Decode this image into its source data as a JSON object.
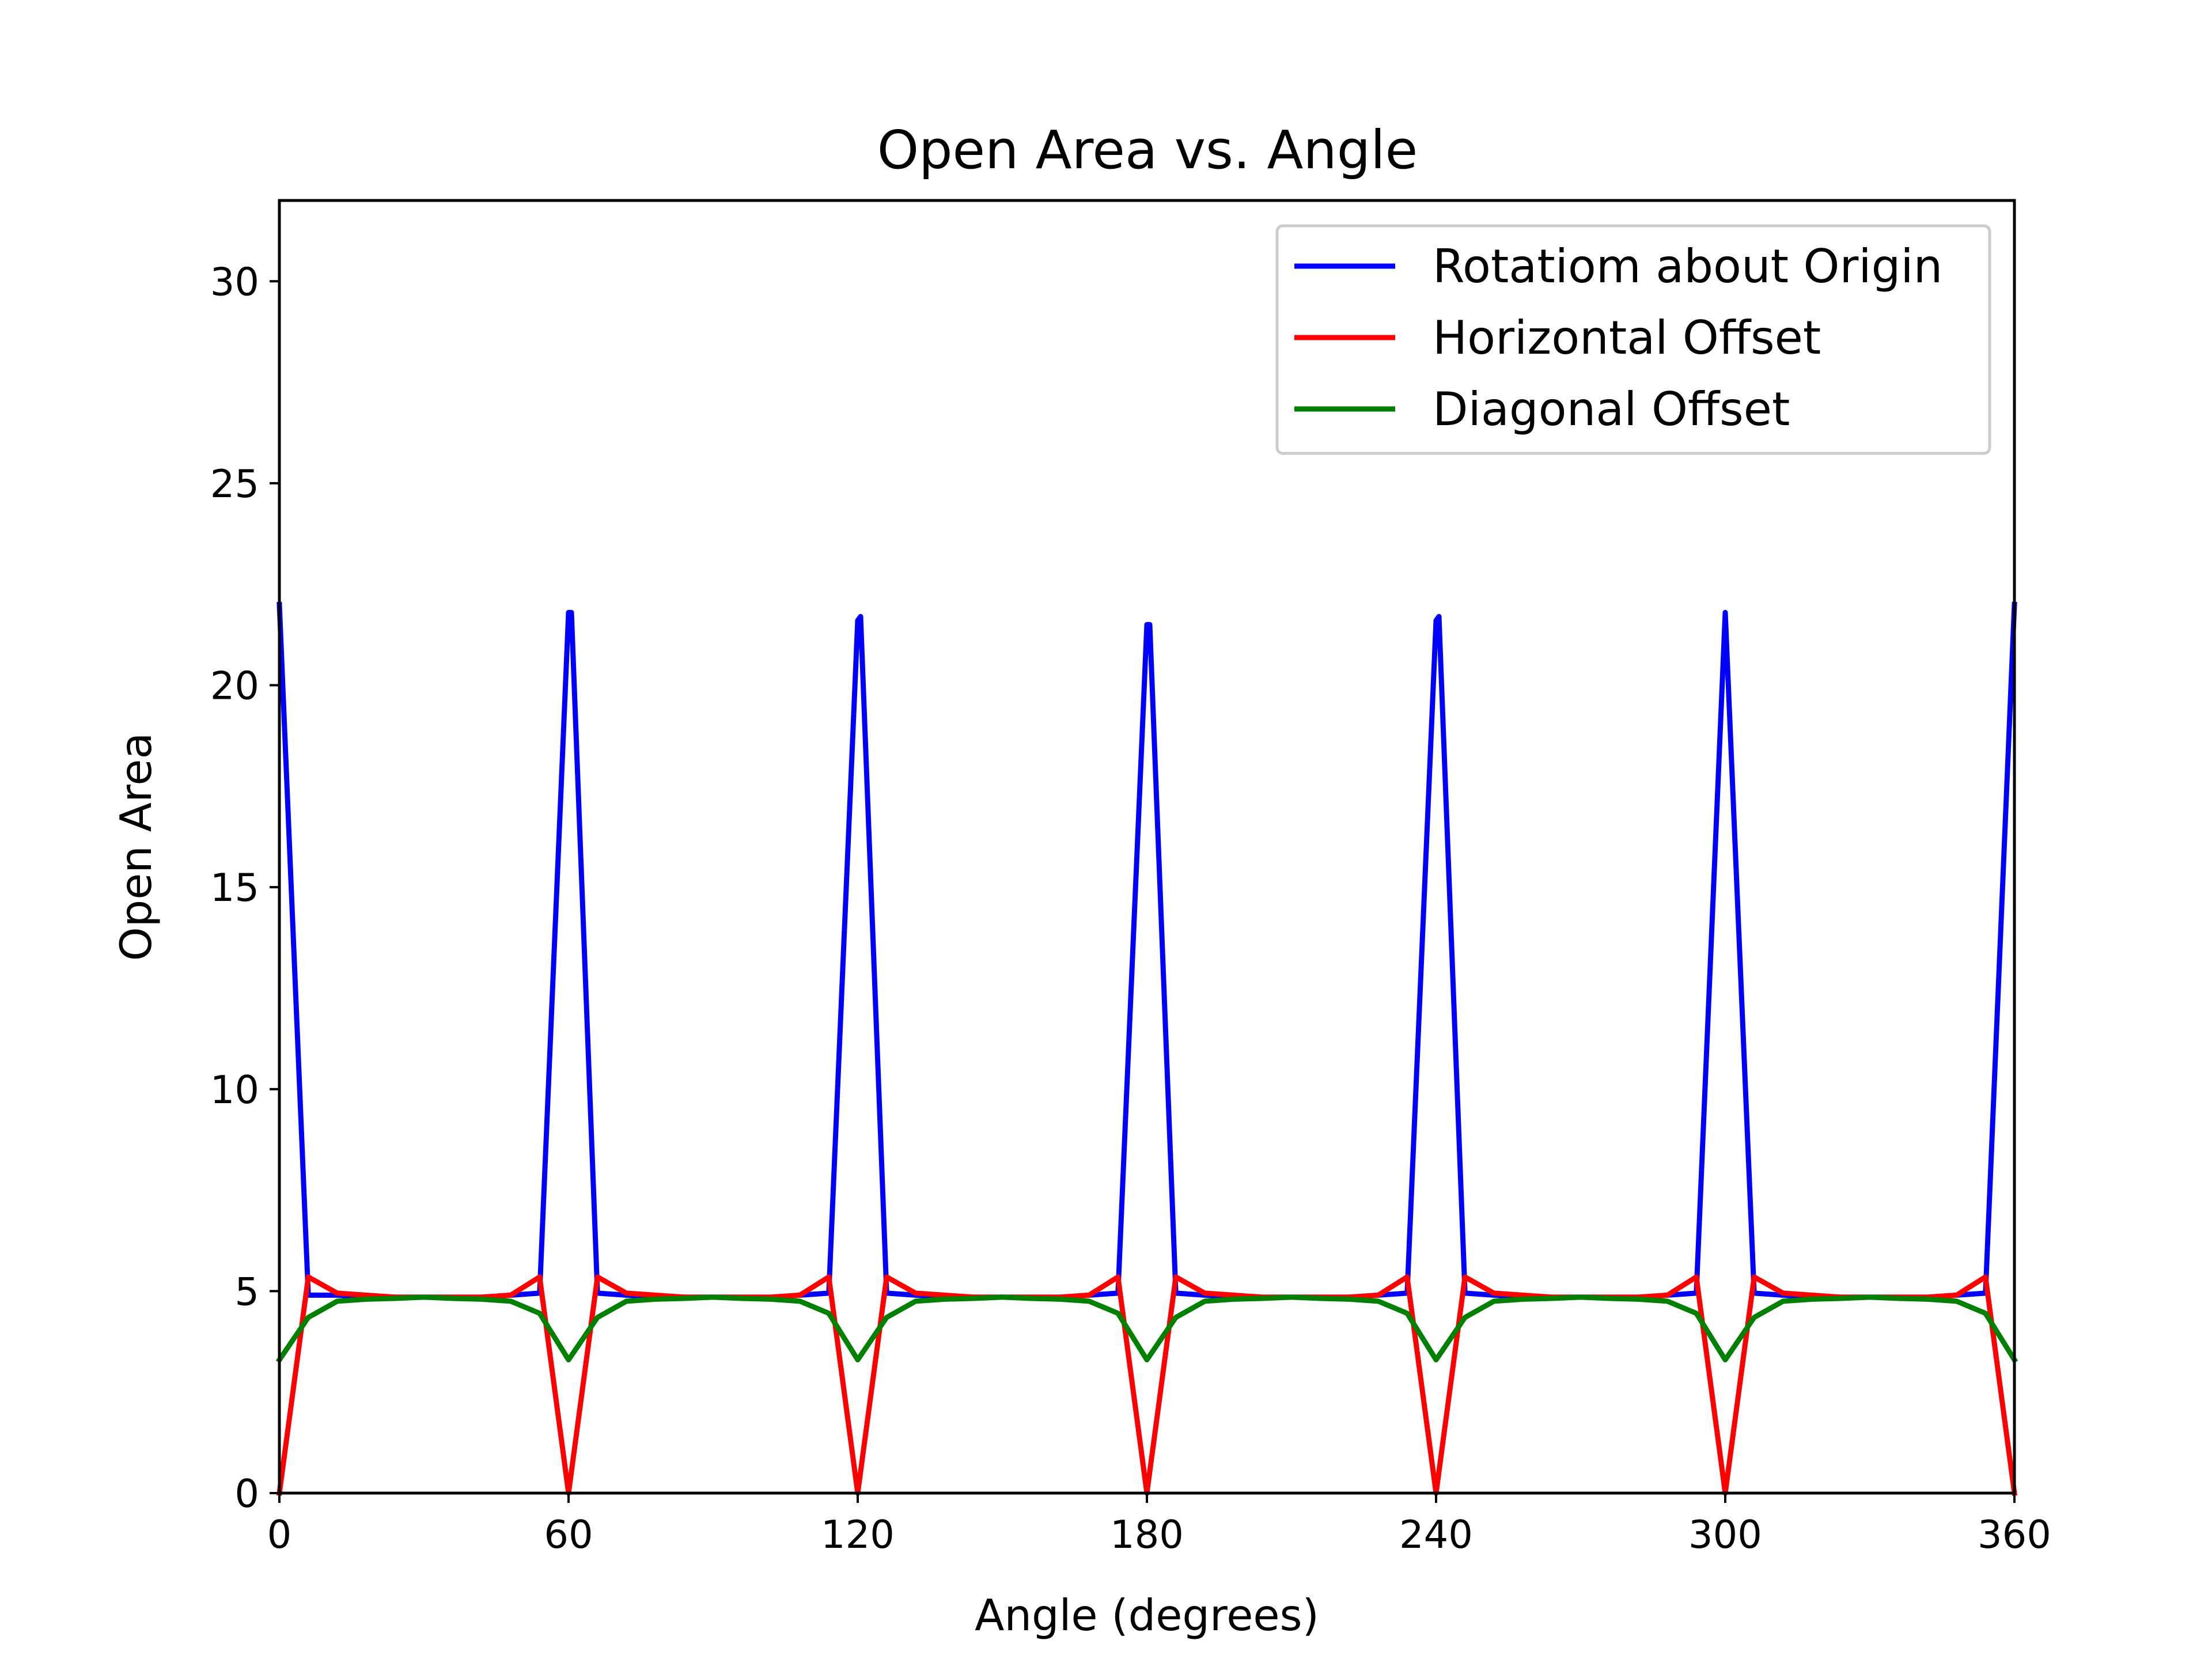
{
  "chart_data": {
    "type": "line",
    "title": "Open Area vs. Angle",
    "xlabel": "Angle (degrees)",
    "ylabel": "Open Area",
    "xlim": [
      0,
      360
    ],
    "ylim": [
      0,
      32
    ],
    "x_ticks": [
      "0",
      "60",
      "120",
      "180",
      "240",
      "300",
      "360"
    ],
    "y_ticks": [
      "0",
      "5",
      "10",
      "15",
      "20",
      "25",
      "30"
    ],
    "grid": false,
    "legend_position": "top-right",
    "series": [
      {
        "name": "Rotatiom about Origin",
        "color": "#0000ff",
        "x": [
          0,
          6,
          12,
          18,
          24,
          30,
          36,
          42,
          48,
          54,
          60,
          60.6,
          66,
          72,
          78,
          84,
          90,
          96,
          102,
          108,
          114,
          120,
          120.6,
          126,
          132,
          138,
          144,
          150,
          156,
          162,
          168,
          174,
          180,
          180.6,
          186,
          192,
          198,
          204,
          210,
          216,
          222,
          228,
          234,
          240,
          240.6,
          246,
          252,
          258,
          264,
          270,
          276,
          282,
          288,
          294,
          300,
          306,
          312,
          318,
          324,
          330,
          336,
          342,
          348,
          354,
          360
        ],
        "y": [
          22.0,
          4.9,
          4.9,
          4.85,
          4.85,
          4.85,
          4.85,
          4.85,
          4.9,
          4.95,
          21.8,
          21.8,
          4.95,
          4.9,
          4.85,
          4.85,
          4.85,
          4.85,
          4.85,
          4.9,
          4.95,
          21.6,
          21.7,
          4.95,
          4.9,
          4.85,
          4.85,
          4.85,
          4.85,
          4.85,
          4.9,
          4.95,
          21.5,
          21.5,
          4.95,
          4.9,
          4.85,
          4.85,
          4.85,
          4.85,
          4.85,
          4.9,
          4.95,
          21.6,
          21.7,
          4.95,
          4.9,
          4.85,
          4.85,
          4.85,
          4.85,
          4.85,
          4.9,
          4.95,
          21.8,
          4.95,
          4.9,
          4.85,
          4.85,
          4.85,
          4.85,
          4.85,
          4.9,
          4.95,
          22.0
        ]
      },
      {
        "name": "Horizontal Offset",
        "color": "#ff0000",
        "x": [
          0,
          6,
          12,
          18,
          24,
          30,
          36,
          42,
          48,
          54,
          60,
          66,
          72,
          78,
          84,
          90,
          96,
          102,
          108,
          114,
          120,
          126,
          132,
          138,
          144,
          150,
          156,
          162,
          168,
          174,
          180,
          186,
          192,
          198,
          204,
          210,
          216,
          222,
          228,
          234,
          240,
          246,
          252,
          258,
          264,
          270,
          276,
          282,
          288,
          294,
          300,
          306,
          312,
          318,
          324,
          330,
          336,
          342,
          348,
          354,
          360
        ],
        "y": [
          0,
          5.35,
          4.95,
          4.9,
          4.85,
          4.85,
          4.85,
          4.85,
          4.9,
          5.35,
          0,
          5.35,
          4.95,
          4.9,
          4.85,
          4.85,
          4.85,
          4.85,
          4.9,
          5.35,
          0,
          5.35,
          4.95,
          4.9,
          4.85,
          4.85,
          4.85,
          4.85,
          4.9,
          5.35,
          0,
          5.35,
          4.95,
          4.9,
          4.85,
          4.85,
          4.85,
          4.85,
          4.9,
          5.35,
          0,
          5.35,
          4.95,
          4.9,
          4.85,
          4.85,
          4.85,
          4.85,
          4.9,
          5.35,
          0,
          5.35,
          4.95,
          4.9,
          4.85,
          4.85,
          4.85,
          4.85,
          4.9,
          5.35,
          0
        ]
      },
      {
        "name": "Diagonal Offset",
        "color": "#008000",
        "x": [
          0,
          6,
          12,
          18,
          24,
          30,
          36,
          42,
          48,
          54,
          60,
          66,
          72,
          78,
          84,
          90,
          96,
          102,
          108,
          114,
          120,
          126,
          132,
          138,
          144,
          150,
          156,
          162,
          168,
          174,
          180,
          186,
          192,
          198,
          204,
          210,
          216,
          222,
          228,
          234,
          240,
          246,
          252,
          258,
          264,
          270,
          276,
          282,
          288,
          294,
          300,
          306,
          312,
          318,
          324,
          330,
          336,
          342,
          348,
          354,
          360
        ],
        "y": [
          3.3,
          4.35,
          4.75,
          4.8,
          4.82,
          4.85,
          4.82,
          4.8,
          4.75,
          4.45,
          3.3,
          4.35,
          4.75,
          4.8,
          4.82,
          4.85,
          4.82,
          4.8,
          4.75,
          4.45,
          3.3,
          4.35,
          4.75,
          4.8,
          4.82,
          4.85,
          4.82,
          4.8,
          4.75,
          4.45,
          3.3,
          4.35,
          4.75,
          4.8,
          4.82,
          4.85,
          4.82,
          4.8,
          4.75,
          4.45,
          3.3,
          4.35,
          4.75,
          4.8,
          4.82,
          4.85,
          4.82,
          4.8,
          4.75,
          4.45,
          3.3,
          4.35,
          4.75,
          4.8,
          4.82,
          4.85,
          4.82,
          4.8,
          4.75,
          4.45,
          3.3
        ]
      }
    ]
  }
}
